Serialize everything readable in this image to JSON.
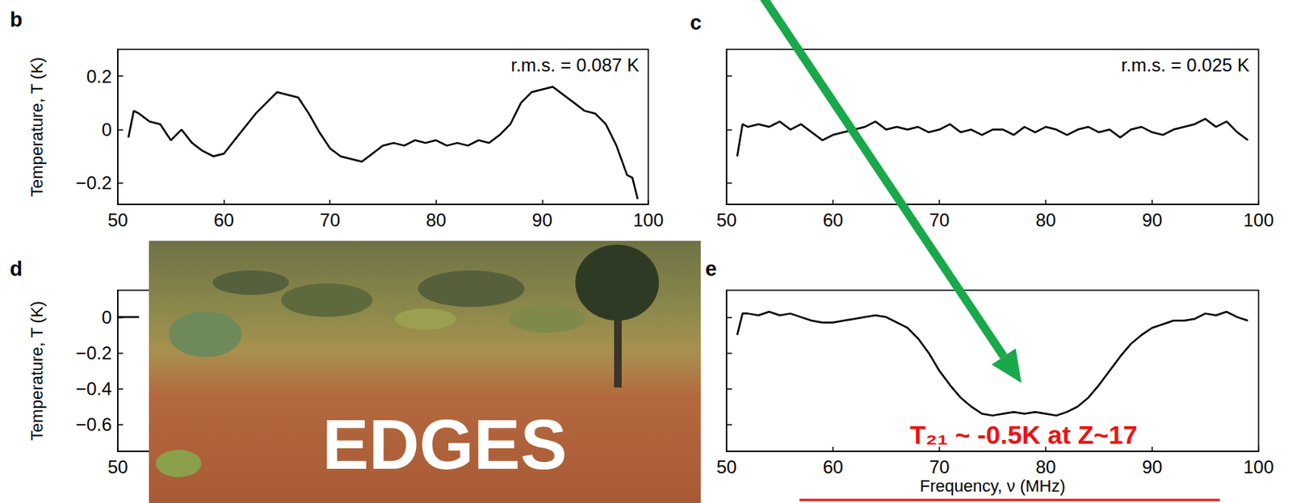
{
  "chart_data": [
    {
      "type": "line",
      "title": "b",
      "annotation": "r.m.s. = 0.087 K",
      "y_label": "Temperature, T (K)",
      "color": "#000000",
      "grid": false,
      "tick_labels": true,
      "xlim": [
        50,
        100
      ],
      "xticks": [
        50,
        60,
        70,
        80,
        90,
        100
      ],
      "ylim": [
        -0.28,
        0.3
      ],
      "yticks": [
        0.2,
        0,
        {
          "value": -0.2,
          "label": "−0.2"
        }
      ],
      "x": [
        51,
        51.5,
        52,
        53,
        54,
        55,
        56,
        57,
        58,
        59,
        60,
        61,
        62,
        63,
        64,
        65,
        66,
        67,
        68,
        69,
        70,
        71,
        72,
        73,
        74,
        75,
        76,
        77,
        78,
        79,
        80,
        81,
        82,
        83,
        84,
        85,
        86,
        87,
        88,
        89,
        90,
        91,
        92,
        93,
        94,
        95,
        96,
        97,
        98,
        98.5,
        99
      ],
      "values": [
        -0.03,
        0.07,
        0.06,
        0.03,
        0.02,
        -0.04,
        0.0,
        -0.05,
        -0.08,
        -0.1,
        -0.09,
        -0.04,
        0.01,
        0.06,
        0.1,
        0.14,
        0.13,
        0.12,
        0.06,
        -0.01,
        -0.07,
        -0.1,
        -0.11,
        -0.12,
        -0.09,
        -0.06,
        -0.05,
        -0.06,
        -0.04,
        -0.05,
        -0.04,
        -0.06,
        -0.05,
        -0.06,
        -0.04,
        -0.05,
        -0.02,
        0.02,
        0.1,
        0.14,
        0.15,
        0.16,
        0.13,
        0.1,
        0.07,
        0.06,
        0.02,
        -0.06,
        -0.17,
        -0.18,
        -0.26
      ]
    },
    {
      "type": "line",
      "title": "c",
      "annotation": "r.m.s. = 0.025 K",
      "color": "#000000",
      "grid": false,
      "tick_labels": "x",
      "xlim": [
        50,
        100
      ],
      "xticks": [
        50,
        60,
        70,
        80,
        90,
        100
      ],
      "ylim": [
        -0.28,
        0.3
      ],
      "yticks": [
        0.2,
        0,
        -0.2
      ],
      "x": [
        51,
        51.5,
        52,
        53,
        54,
        55,
        56,
        57,
        58,
        59,
        60,
        61,
        62,
        63,
        64,
        65,
        66,
        67,
        68,
        69,
        70,
        71,
        72,
        73,
        74,
        75,
        76,
        77,
        78,
        79,
        80,
        81,
        82,
        83,
        84,
        85,
        86,
        87,
        88,
        89,
        90,
        91,
        92,
        93,
        94,
        95,
        96,
        97,
        98,
        99
      ],
      "values": [
        -0.1,
        0.02,
        0.01,
        0.02,
        0.01,
        0.03,
        0.0,
        0.02,
        -0.01,
        -0.04,
        -0.02,
        -0.01,
        0.0,
        0.01,
        0.03,
        0.0,
        0.01,
        0.0,
        0.01,
        -0.01,
        0.0,
        0.02,
        -0.01,
        0.0,
        -0.02,
        0.0,
        0.0,
        -0.02,
        0.01,
        -0.01,
        0.01,
        0.0,
        -0.02,
        0.0,
        0.01,
        -0.01,
        0.0,
        -0.03,
        0.0,
        0.01,
        -0.01,
        -0.02,
        0.0,
        0.01,
        0.02,
        0.04,
        0.01,
        0.03,
        -0.01,
        -0.04
      ]
    },
    {
      "type": "line",
      "title": "d",
      "annotation": "EDGES",
      "y_label": "Temperature, T (K)",
      "color": "#000000",
      "grid": false,
      "tick_labels": true,
      "xlim": [
        50,
        100
      ],
      "xticks": [
        50
      ],
      "ylim": [
        -0.75,
        0.15
      ],
      "yticks": [
        0,
        {
          "value": -0.2,
          "label": "−0.2"
        },
        {
          "value": -0.4,
          "label": "−0.4"
        },
        {
          "value": -0.6,
          "label": "−0.6"
        }
      ],
      "x": [
        50,
        51,
        52
      ],
      "values": [
        0,
        0,
        0
      ]
    },
    {
      "type": "line",
      "title": "e",
      "annotation": "T₂₁ ~ -0.5K at Z~17",
      "x_label": "Frequency, ν (MHz)",
      "color": "#000000",
      "grid": false,
      "tick_labels": "x",
      "xlim": [
        50,
        100
      ],
      "xticks": [
        50,
        60,
        70,
        80,
        90,
        100
      ],
      "ylim": [
        -0.75,
        0.15
      ],
      "yticks": [
        0,
        -0.2,
        -0.4,
        -0.6
      ],
      "x": [
        51,
        51.5,
        52,
        53,
        54,
        55,
        56,
        57,
        58,
        59,
        60,
        61,
        62,
        63,
        64,
        65,
        66,
        67,
        68,
        69,
        70,
        71,
        72,
        73,
        74,
        75,
        76,
        77,
        78,
        79,
        80,
        81,
        82,
        83,
        84,
        85,
        86,
        87,
        88,
        89,
        90,
        91,
        92,
        93,
        94,
        95,
        96,
        97,
        98,
        99
      ],
      "values": [
        -0.1,
        0.02,
        0.02,
        0.01,
        0.03,
        0.01,
        0.02,
        0.0,
        -0.02,
        -0.03,
        -0.03,
        -0.02,
        -0.01,
        0.0,
        0.01,
        0.0,
        -0.03,
        -0.06,
        -0.12,
        -0.2,
        -0.3,
        -0.38,
        -0.45,
        -0.5,
        -0.54,
        -0.55,
        -0.54,
        -0.53,
        -0.54,
        -0.53,
        -0.54,
        -0.55,
        -0.53,
        -0.5,
        -0.45,
        -0.38,
        -0.3,
        -0.22,
        -0.15,
        -0.1,
        -0.06,
        -0.04,
        -0.02,
        -0.02,
        -0.01,
        0.02,
        0.01,
        0.03,
        0.0,
        -0.02
      ]
    }
  ]
}
